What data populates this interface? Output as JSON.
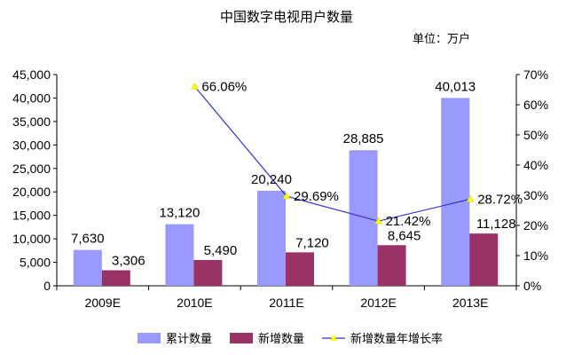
{
  "chart_data": {
    "type": "bar",
    "title": "中国数字电视用户数量",
    "unit_label": "单位：万户",
    "categories": [
      "2009E",
      "2010E",
      "2011E",
      "2012E",
      "2013E"
    ],
    "series": [
      {
        "name": "累计数量",
        "type": "bar",
        "axis": "left",
        "color": "#9999ff",
        "values": [
          7630,
          13120,
          20240,
          28885,
          40013
        ],
        "labels": [
          "7,630",
          "13,120",
          "20,240",
          "28,885",
          "40,013"
        ]
      },
      {
        "name": "新增数量",
        "type": "bar",
        "axis": "left",
        "color": "#993366",
        "values": [
          3306,
          5490,
          7120,
          8645,
          11128
        ],
        "labels": [
          "3,306",
          "5,490",
          "7,120",
          "8,645",
          "11,128"
        ]
      },
      {
        "name": "新增数量年增长率",
        "type": "line",
        "axis": "right",
        "color": "#3333cc",
        "marker_color": "#ffff00",
        "values": [
          null,
          66.06,
          29.69,
          21.42,
          28.72
        ],
        "labels": [
          "",
          "66.06%",
          "29.69%",
          "21.42%",
          "28.72%"
        ]
      }
    ],
    "y_left": {
      "range": [
        0,
        45000
      ],
      "ticks": [
        "0",
        "5,000",
        "10,000",
        "15,000",
        "20,000",
        "25,000",
        "30,000",
        "35,000",
        "40,000",
        "45,000"
      ]
    },
    "y_right": {
      "range": [
        0,
        70
      ],
      "ticks": [
        "0%",
        "10%",
        "20%",
        "30%",
        "40%",
        "50%",
        "60%",
        "70%"
      ]
    },
    "grid": false,
    "legend_position": "bottom"
  }
}
